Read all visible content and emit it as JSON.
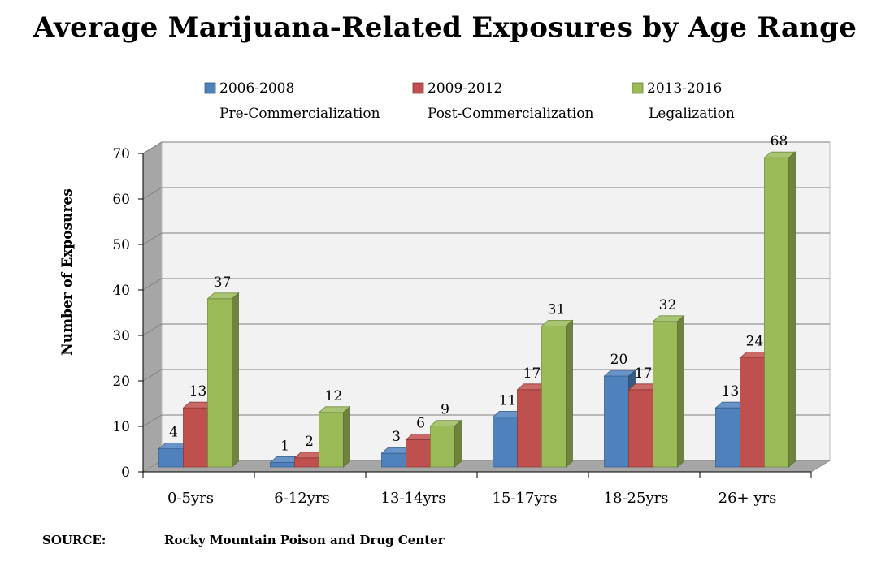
{
  "chart_data": {
    "type": "bar",
    "title": "Average Marijuana-Related Exposures by Age Range",
    "xlabel": "",
    "ylabel": "Number of Exposures",
    "ylim": [
      0,
      70
    ],
    "yticks": [
      0,
      10,
      20,
      30,
      40,
      50,
      60,
      70
    ],
    "grid": true,
    "legend_position": "top",
    "categories": [
      "0-5yrs",
      "6-12yrs",
      "13-14yrs",
      "15-17yrs",
      "18-25yrs",
      "26+ yrs"
    ],
    "series": [
      {
        "name": "2006-2008",
        "subtitle": "Pre-Commercialization",
        "color": "#4f81bd",
        "values": [
          4,
          1,
          3,
          11,
          20,
          13
        ]
      },
      {
        "name": "2009-2012",
        "subtitle": "Post-Commercialization",
        "color": "#c0504d",
        "values": [
          13,
          2,
          6,
          17,
          17,
          24
        ]
      },
      {
        "name": "2013-2016",
        "subtitle": "Legalization",
        "color": "#9bbb59",
        "values": [
          37,
          12,
          9,
          31,
          32,
          68
        ]
      }
    ]
  },
  "source": {
    "label": "SOURCE:",
    "text": "Rocky Mountain Poison and Drug Center"
  }
}
